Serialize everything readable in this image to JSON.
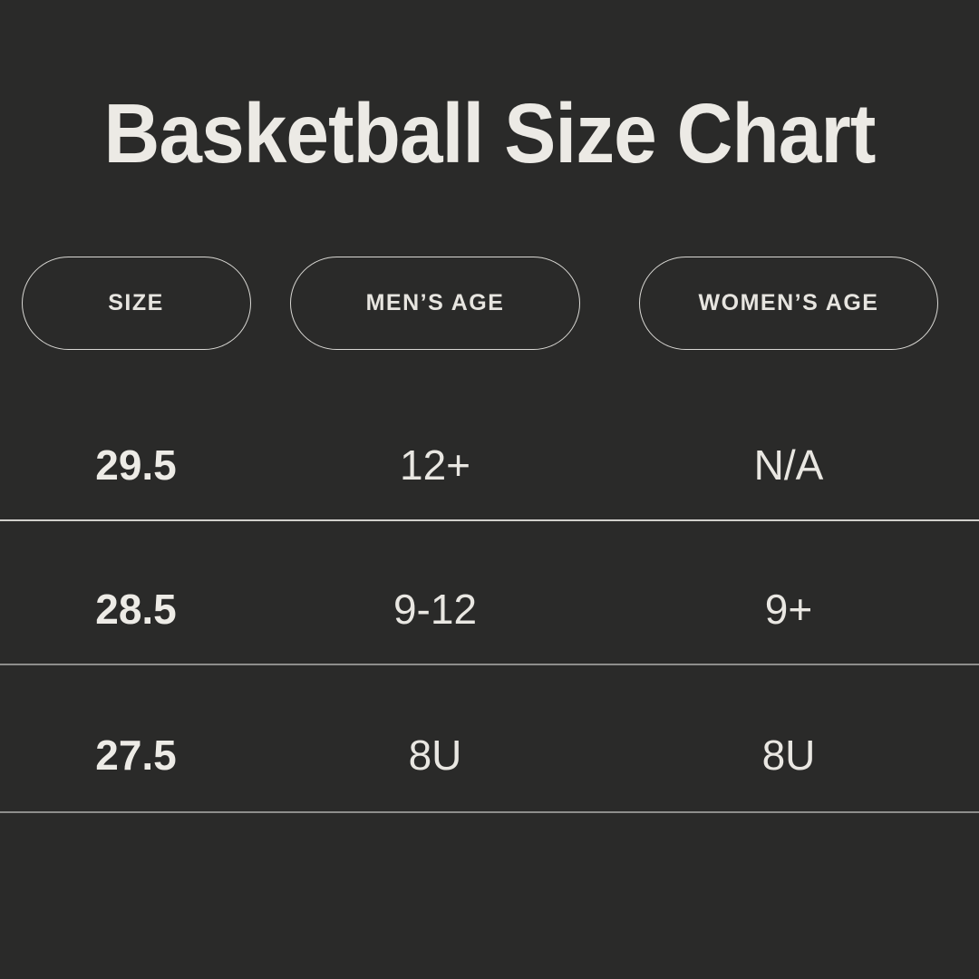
{
  "title": "Basketball Size Chart",
  "chart_data": {
    "type": "table",
    "title": "Basketball Size Chart",
    "columns": [
      "SIZE",
      "MEN’S AGE",
      "WOMEN’S AGE"
    ],
    "rows": [
      [
        "29.5",
        "12+",
        "N/A"
      ],
      [
        "28.5",
        "9-12",
        "9+"
      ],
      [
        "27.5",
        "8U",
        "8U"
      ]
    ]
  },
  "colors": {
    "background": "#2a2a29",
    "title_text": "#eceae5",
    "body_text": "#e9e7e2",
    "pill_border": "#d9d8d4",
    "divider_bright": "#d0cfcb",
    "divider_dim": "#8e8e8c"
  }
}
